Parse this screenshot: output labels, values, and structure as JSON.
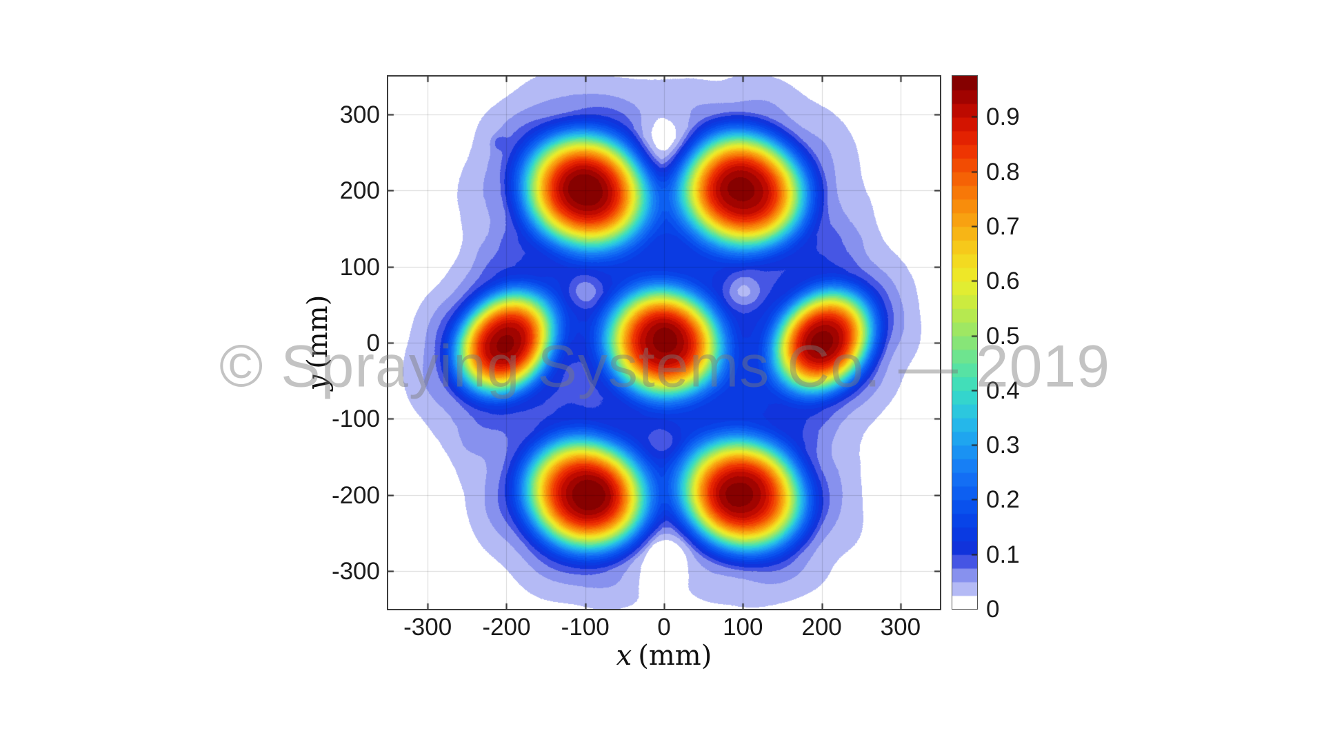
{
  "watermark_text": "© Spraying Systems Co. — 2019",
  "chart_data": {
    "type": "heatmap",
    "subtype": "filled-contour",
    "title": "",
    "xlabel_var": "x",
    "xlabel_unit": "(mm)",
    "ylabel_var": "y",
    "ylabel_unit": "(mm)",
    "xlim": [
      -350,
      350
    ],
    "ylim": [
      -350,
      350
    ],
    "x_ticks": [
      -300,
      -200,
      -100,
      0,
      100,
      200,
      300
    ],
    "x_tick_labels": [
      "-300",
      "-200",
      "-100",
      "0",
      "100",
      "200",
      "300"
    ],
    "y_ticks": [
      300,
      200,
      100,
      0,
      -100,
      -200,
      -300
    ],
    "y_tick_labels": [
      "300",
      "200",
      "100",
      "0",
      "-100",
      "-200",
      "-300"
    ],
    "grid": true,
    "spray_centers_mm": [
      [
        -100,
        200
      ],
      [
        100,
        200
      ],
      [
        -200,
        0
      ],
      [
        0,
        0
      ],
      [
        200,
        0
      ],
      [
        -100,
        -200
      ],
      [
        100,
        -200
      ]
    ],
    "peak_coverage": 0.97,
    "nozzle_spacing_mm": 200,
    "colorbar": {
      "min": 0,
      "max": 0.975,
      "band_step": 0.025,
      "tick_values": [
        0,
        0.1,
        0.2,
        0.3,
        0.4,
        0.5,
        0.6,
        0.7,
        0.8,
        0.9
      ],
      "tick_labels": [
        "0",
        "0.1",
        "0.2",
        "0.3",
        "0.4",
        "0.5",
        "0.6",
        "0.7",
        "0.8",
        "0.9"
      ]
    },
    "colormap": {
      "band_step": 0.025,
      "background": "#ffffff",
      "stops": [
        {
          "v": 0.025,
          "c": "#c8ccf8"
        },
        {
          "v": 0.05,
          "c": "#a0a8f2"
        },
        {
          "v": 0.075,
          "c": "#6e7aea"
        },
        {
          "v": 0.0875,
          "c": "#4656e4"
        },
        {
          "v": 0.1,
          "c": "#1430d8"
        },
        {
          "v": 0.15,
          "c": "#083ee6"
        },
        {
          "v": 0.2,
          "c": "#0a58f0"
        },
        {
          "v": 0.25,
          "c": "#1676f6"
        },
        {
          "v": 0.3,
          "c": "#1c9cf2"
        },
        {
          "v": 0.35,
          "c": "#28c0e8"
        },
        {
          "v": 0.4,
          "c": "#38dcc4"
        },
        {
          "v": 0.45,
          "c": "#62e49a"
        },
        {
          "v": 0.5,
          "c": "#94e66e"
        },
        {
          "v": 0.55,
          "c": "#c2ea46"
        },
        {
          "v": 0.6,
          "c": "#ecee2c"
        },
        {
          "v": 0.65,
          "c": "#f6d41e"
        },
        {
          "v": 0.7,
          "c": "#f8ac14"
        },
        {
          "v": 0.75,
          "c": "#f8840a"
        },
        {
          "v": 0.8,
          "c": "#f45804"
        },
        {
          "v": 0.85,
          "c": "#ec2a02"
        },
        {
          "v": 0.9,
          "c": "#cc0e00"
        },
        {
          "v": 0.935,
          "c": "#a40400"
        },
        {
          "v": 0.975,
          "c": "#780000"
        }
      ]
    },
    "model": {
      "profile": [
        [
          0,
          0.968
        ],
        [
          10,
          0.96
        ],
        [
          20,
          0.941
        ],
        [
          30,
          0.902
        ],
        [
          40,
          0.822
        ],
        [
          50,
          0.695
        ],
        [
          60,
          0.528
        ],
        [
          70,
          0.357
        ],
        [
          80,
          0.222
        ],
        [
          90,
          0.131
        ],
        [
          100,
          0.078
        ],
        [
          110,
          0.06
        ],
        [
          120,
          0.048
        ],
        [
          130,
          0.037
        ],
        [
          140,
          0.03
        ],
        [
          150,
          0.024
        ],
        [
          160,
          0.017
        ],
        [
          172,
          0.01
        ],
        [
          185,
          0.005
        ],
        [
          200,
          0.002
        ],
        [
          215,
          0
        ]
      ],
      "blobs": [
        {
          "x": -100,
          "y": 200,
          "sx": 1.1,
          "sy": 1.02,
          "th": -30,
          "peak": 0.966
        },
        {
          "x": 100,
          "y": 200,
          "sx": 1.1,
          "sy": 1.02,
          "th": -30,
          "peak": 0.968
        },
        {
          "x": -202,
          "y": 0,
          "sx": 0.78,
          "sy": 0.98,
          "th": -35,
          "peak": 0.965
        },
        {
          "x": 0,
          "y": 0,
          "sx": 1.02,
          "sy": 0.96,
          "th": -30,
          "peak": 0.967
        },
        {
          "x": 202,
          "y": 2,
          "sx": 0.78,
          "sy": 0.98,
          "th": -35,
          "peak": 0.962
        },
        {
          "x": -100,
          "y": -200,
          "sx": 1.08,
          "sy": 0.98,
          "th": -32,
          "peak": 0.968
        },
        {
          "x": 100,
          "y": -200,
          "sx": 1.08,
          "sy": 0.98,
          "th": -32,
          "peak": 0.966
        }
      ],
      "dips": [
        {
          "x": -100,
          "y": 67,
          "a": 0.062,
          "r": 24
        },
        {
          "x": 100,
          "y": 67,
          "a": 0.062,
          "r": 24
        },
        {
          "x": 0,
          "y": -133,
          "a": 0.058,
          "r": 26
        },
        {
          "x": 0,
          "y": 252,
          "a": 0.11,
          "r": 48
        },
        {
          "x": 0,
          "y": -272,
          "a": 0.1,
          "r": 45
        }
      ],
      "spots": [
        {
          "x": -209,
          "y": 263,
          "a": 0.034,
          "r": 9
        }
      ],
      "noise": {
        "t1": {
          "amp": 0.0095,
          "fx": 0.045,
          "px": 1.1,
          "fy": 0.039,
          "py": 0.3,
          "warp": 0.7,
          "wfx": 0.017,
          "wfy": 0.021
        },
        "t2": {
          "amp": 0.0055,
          "fx": 0.012,
          "px": -0.6,
          "fy": 0.0105,
          "py": 1.4
        },
        "gate_lo": 0.012,
        "gate_span": 0.04
      }
    },
    "style": {
      "grid_color": "rgba(0,0,0,0.15)",
      "tick_color": "#222222",
      "frame_color": "#3c3c3c",
      "tick_len": 8
    }
  }
}
